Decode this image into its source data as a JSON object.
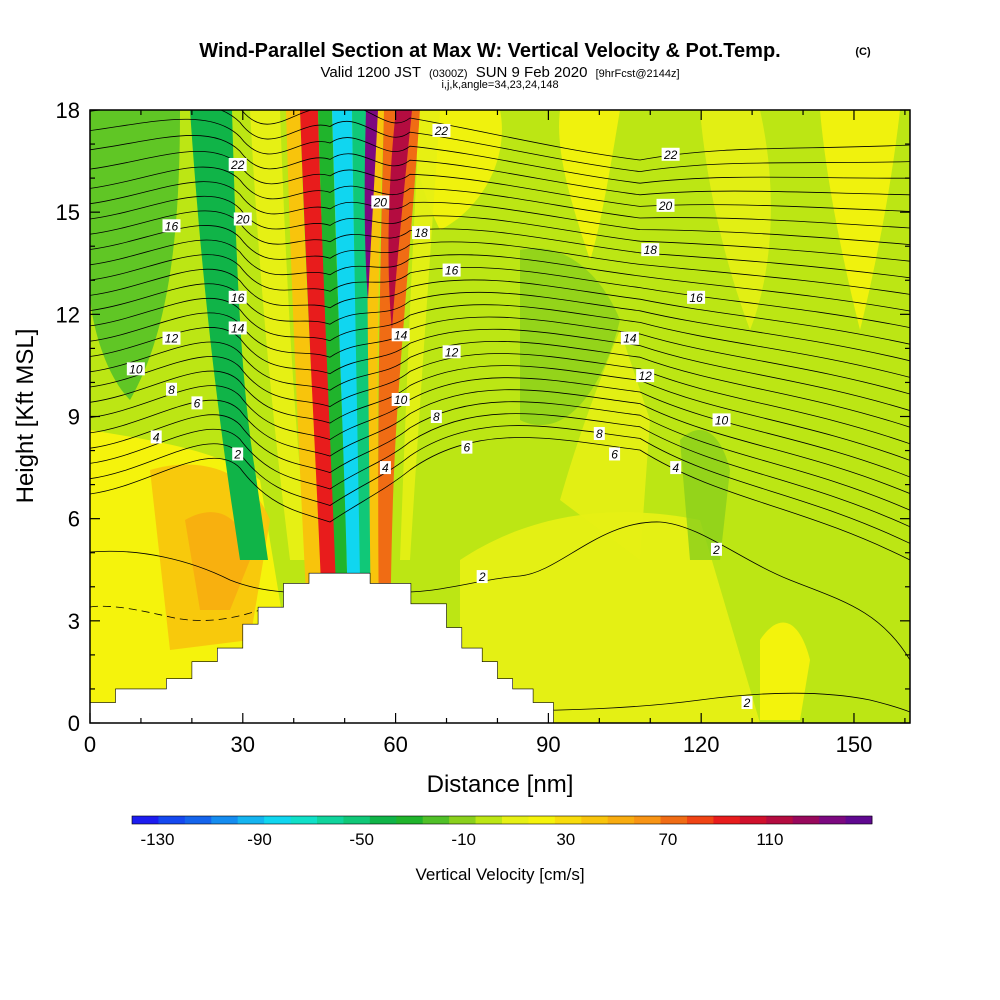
{
  "header": {
    "title_main": "Wind-Parallel Section at Max W: Vertical Velocity & Pot.Temp.",
    "title_mark": "(C)",
    "subtitle_a": "Valid 1200 JST",
    "subtitle_b": "(0300Z)",
    "subtitle_c": "SUN 9 Feb 2020",
    "subtitle_d": "[9hrFcst@2144z]",
    "subtitle_line3": "i,j,k,angle=34,23,24,148"
  },
  "chart_data": {
    "type": "heatmap",
    "xlabel": "Distance [nm]",
    "ylabel": "Height [Kft MSL]",
    "xlim": [
      0,
      161
    ],
    "ylim": [
      0,
      18
    ],
    "x_ticks": [
      0,
      30,
      60,
      90,
      120,
      150
    ],
    "y_ticks": [
      0,
      3,
      6,
      9,
      12,
      15,
      18
    ],
    "grid": false,
    "colorbar": {
      "label": "Vertical Velocity [cm/s]",
      "tick_labels": [
        "-130",
        "-90",
        "-50",
        "-10",
        "30",
        "70",
        "110"
      ],
      "min": -140,
      "max": 150,
      "colors": [
        "#1c1cf0",
        "#1448f0",
        "#1464ec",
        "#148cf0",
        "#14b4f0",
        "#10d6f0",
        "#10e0c8",
        "#10d49c",
        "#10c878",
        "#10b448",
        "#20b42c",
        "#50c028",
        "#8ad01c",
        "#bce614",
        "#e6f014",
        "#f5f30c",
        "#f8dc0c",
        "#f8c40c",
        "#f8ac10",
        "#f89414",
        "#f06c14",
        "#f04414",
        "#e81c1c",
        "#d0102c",
        "#b40c40",
        "#98085c",
        "#7c0880",
        "#600890"
      ]
    },
    "contour_field": "Potential temperature",
    "contour_labels": [
      {
        "text": "22",
        "x": 69,
        "y": 17.4
      },
      {
        "text": "22",
        "x": 114,
        "y": 16.7
      },
      {
        "text": "22",
        "x": 29,
        "y": 16.4
      },
      {
        "text": "20",
        "x": 57,
        "y": 15.3
      },
      {
        "text": "20",
        "x": 30,
        "y": 14.8
      },
      {
        "text": "20",
        "x": 113,
        "y": 15.2
      },
      {
        "text": "18",
        "x": 65,
        "y": 14.4
      },
      {
        "text": "18",
        "x": 110,
        "y": 13.9
      },
      {
        "text": "16",
        "x": 16,
        "y": 14.6
      },
      {
        "text": "16",
        "x": 71,
        "y": 13.3
      },
      {
        "text": "16",
        "x": 119,
        "y": 12.5
      },
      {
        "text": "16",
        "x": 29,
        "y": 12.5
      },
      {
        "text": "14",
        "x": 29,
        "y": 11.6
      },
      {
        "text": "14",
        "x": 61,
        "y": 11.4
      },
      {
        "text": "14",
        "x": 106,
        "y": 11.3
      },
      {
        "text": "12",
        "x": 16,
        "y": 11.3
      },
      {
        "text": "12",
        "x": 71,
        "y": 10.9
      },
      {
        "text": "12",
        "x": 109,
        "y": 10.2
      },
      {
        "text": "10",
        "x": 9,
        "y": 10.4
      },
      {
        "text": "10",
        "x": 61,
        "y": 9.5
      },
      {
        "text": "10",
        "x": 124,
        "y": 8.9
      },
      {
        "text": "8",
        "x": 16,
        "y": 9.8
      },
      {
        "text": "8",
        "x": 68,
        "y": 9.0
      },
      {
        "text": "8",
        "x": 100,
        "y": 8.5
      },
      {
        "text": "6",
        "x": 21,
        "y": 9.4
      },
      {
        "text": "6",
        "x": 74,
        "y": 8.1
      },
      {
        "text": "6",
        "x": 103,
        "y": 7.9
      },
      {
        "text": "4",
        "x": 13,
        "y": 8.4
      },
      {
        "text": "4",
        "x": 58,
        "y": 7.5
      },
      {
        "text": "4",
        "x": 115,
        "y": 7.5
      },
      {
        "text": "2",
        "x": 29,
        "y": 7.9
      },
      {
        "text": "2",
        "x": 77,
        "y": 4.3
      },
      {
        "text": "2",
        "x": 123,
        "y": 5.1
      },
      {
        "text": "2",
        "x": 129,
        "y": 0.6
      }
    ],
    "terrain_profile": [
      [
        0,
        0.6
      ],
      [
        5,
        0.6
      ],
      [
        5,
        1.0
      ],
      [
        15,
        1.0
      ],
      [
        15,
        1.3
      ],
      [
        20,
        1.3
      ],
      [
        20,
        1.8
      ],
      [
        25,
        1.8
      ],
      [
        25,
        2.2
      ],
      [
        30,
        2.2
      ],
      [
        30,
        2.9
      ],
      [
        33,
        2.9
      ],
      [
        33,
        3.4
      ],
      [
        38,
        3.4
      ],
      [
        38,
        4.1
      ],
      [
        43,
        4.1
      ],
      [
        43,
        4.4
      ],
      [
        55,
        4.4
      ],
      [
        55,
        4.1
      ],
      [
        63,
        4.1
      ],
      [
        63,
        3.5
      ],
      [
        70,
        3.5
      ],
      [
        70,
        2.8
      ],
      [
        73,
        2.8
      ],
      [
        73,
        2.2
      ],
      [
        77,
        2.2
      ],
      [
        77,
        1.8
      ],
      [
        80,
        1.8
      ],
      [
        80,
        1.3
      ],
      [
        83,
        1.3
      ],
      [
        83,
        1.0
      ],
      [
        87,
        1.0
      ],
      [
        87,
        0.6
      ],
      [
        91,
        0.6
      ],
      [
        91,
        0
      ]
    ]
  }
}
